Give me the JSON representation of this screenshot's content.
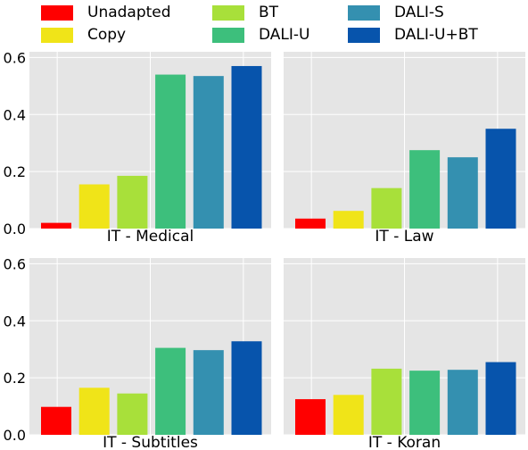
{
  "legend": {
    "items": [
      {
        "label": "Unadapted",
        "color": "#ff0000"
      },
      {
        "label": "Copy",
        "color": "#f0e418"
      },
      {
        "label": "BT",
        "color": "#a8e03a"
      },
      {
        "label": "DALI-U",
        "color": "#3dbf7c"
      },
      {
        "label": "DALI-S",
        "color": "#3490b0"
      },
      {
        "label": "DALI-U+BT",
        "color": "#0754ac"
      }
    ]
  },
  "chart_data": [
    {
      "type": "bar",
      "title": "IT - Medical",
      "categories": [
        "Unadapted",
        "Copy",
        "BT",
        "DALI-U",
        "DALI-S",
        "DALI-U+BT"
      ],
      "values": [
        0.02,
        0.155,
        0.185,
        0.54,
        0.535,
        0.57
      ],
      "yticks": [
        "0.0",
        "0.2",
        "0.4",
        "0.6"
      ],
      "ylim": [
        0,
        0.62
      ],
      "grid": true,
      "legend_position": "top"
    },
    {
      "type": "bar",
      "title": "IT - Law",
      "categories": [
        "Unadapted",
        "Copy",
        "BT",
        "DALI-U",
        "DALI-S",
        "DALI-U+BT"
      ],
      "values": [
        0.035,
        0.062,
        0.142,
        0.275,
        0.25,
        0.35
      ],
      "ylim": [
        0,
        0.62
      ],
      "grid": true
    },
    {
      "type": "bar",
      "title": "IT - Subtitles",
      "categories": [
        "Unadapted",
        "Copy",
        "BT",
        "DALI-U",
        "DALI-S",
        "DALI-U+BT"
      ],
      "values": [
        0.098,
        0.165,
        0.145,
        0.305,
        0.297,
        0.328
      ],
      "yticks": [
        "0.0",
        "0.2",
        "0.4",
        "0.6"
      ],
      "ylim": [
        0,
        0.62
      ],
      "grid": true
    },
    {
      "type": "bar",
      "title": "IT - Koran",
      "categories": [
        "Unadapted",
        "Copy",
        "BT",
        "DALI-U",
        "DALI-S",
        "DALI-U+BT"
      ],
      "values": [
        0.125,
        0.14,
        0.232,
        0.225,
        0.228,
        0.255
      ],
      "ylim": [
        0,
        0.62
      ],
      "grid": true
    }
  ]
}
